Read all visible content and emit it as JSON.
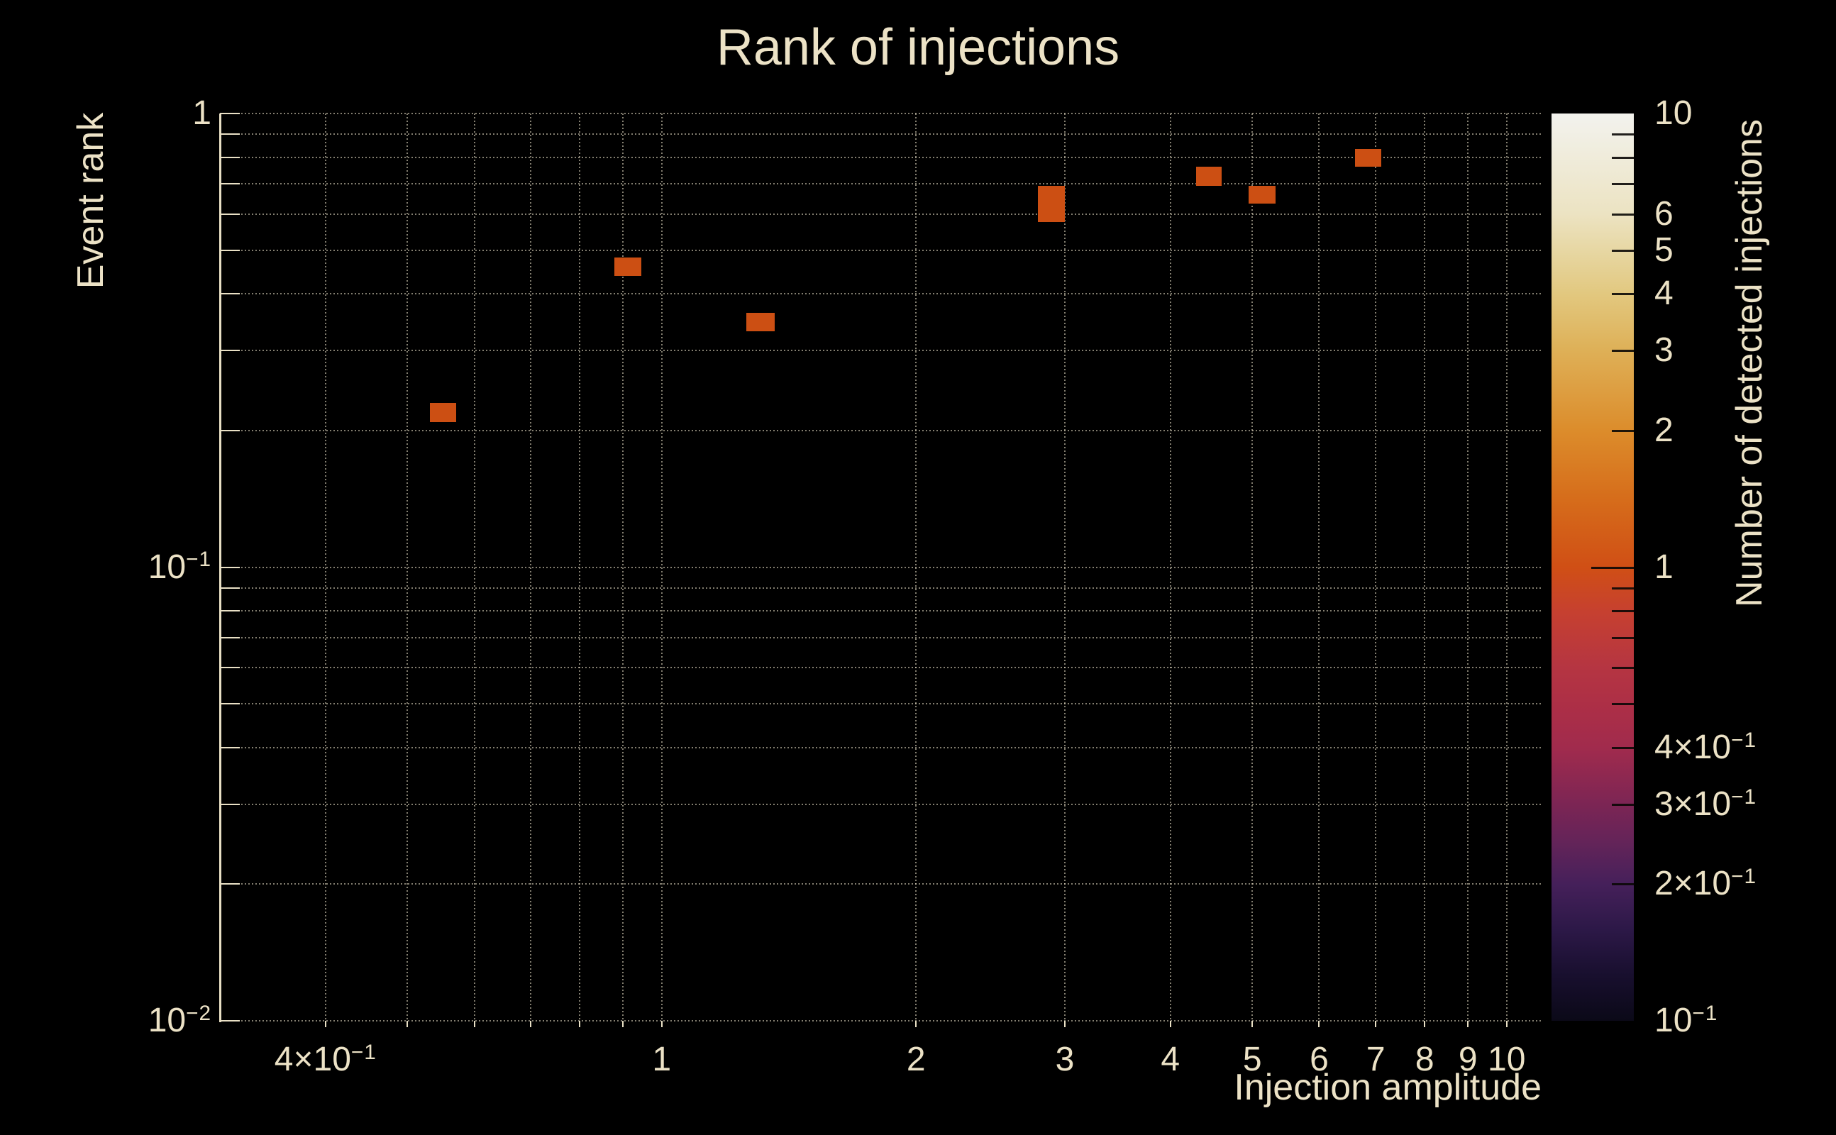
{
  "title": "Rank of injections",
  "colors": {
    "background": "#000000",
    "text": "#ece2c6",
    "grid": "#eee5cb",
    "cell_fill": "#cc4f13"
  },
  "chart_data": {
    "type": "heatmap",
    "title": "Rank of injections",
    "xlabel": "Injection amplitude",
    "ylabel": "Event rank",
    "zlabel": "Number of detected injections",
    "x_scale": "log",
    "y_scale": "log",
    "z_scale": "log",
    "xlim": [
      0.3,
      11
    ],
    "ylim": [
      0.01,
      1
    ],
    "zlim": [
      0.1,
      10
    ],
    "grid": true,
    "x_gridlines": [
      0.4,
      0.5,
      0.6,
      0.7,
      0.8,
      0.9,
      1,
      2,
      3,
      4,
      5,
      6,
      7,
      8,
      9,
      10
    ],
    "y_gridlines": [
      1,
      0.9,
      0.8,
      0.7,
      0.6,
      0.5,
      0.4,
      0.3,
      0.2,
      0.1,
      0.09,
      0.08,
      0.07,
      0.06,
      0.05,
      0.04,
      0.03,
      0.02,
      0.01
    ],
    "x_tick_labels": [
      {
        "v": 0.4,
        "base": "4×10",
        "exp": "−1"
      },
      {
        "v": 1,
        "base": "1"
      },
      {
        "v": 2,
        "base": "2"
      },
      {
        "v": 3,
        "base": "3"
      },
      {
        "v": 4,
        "base": "4"
      },
      {
        "v": 5,
        "base": "5"
      },
      {
        "v": 6,
        "base": "6"
      },
      {
        "v": 7,
        "base": "7"
      },
      {
        "v": 8,
        "base": "8"
      },
      {
        "v": 9,
        "base": "9"
      },
      {
        "v": 10,
        "base": "10"
      }
    ],
    "y_tick_labels": [
      {
        "v": 1,
        "base": "1"
      },
      {
        "v": 0.1,
        "base": "10",
        "exp": "−1"
      },
      {
        "v": 0.01,
        "base": "10",
        "exp": "−2"
      }
    ],
    "cells": [
      {
        "x0": 0.532,
        "x1": 0.571,
        "y0": 0.209,
        "y1": 0.23,
        "count": 1
      },
      {
        "x0": 0.879,
        "x1": 0.946,
        "y0": 0.438,
        "y1": 0.481,
        "count": 1
      },
      {
        "x0": 1.26,
        "x1": 1.36,
        "y0": 0.331,
        "y1": 0.364,
        "count": 1
      },
      {
        "x0": 2.79,
        "x1": 3.0,
        "y0": 0.576,
        "y1": 0.634,
        "count": 1
      },
      {
        "x0": 2.79,
        "x1": 3.0,
        "y0": 0.634,
        "y1": 0.693,
        "count": 1
      },
      {
        "x0": 4.29,
        "x1": 4.6,
        "y0": 0.693,
        "y1": 0.763,
        "count": 1
      },
      {
        "x0": 4.95,
        "x1": 5.33,
        "y0": 0.633,
        "y1": 0.693,
        "count": 1
      },
      {
        "x0": 6.62,
        "x1": 7.1,
        "y0": 0.763,
        "y1": 0.835,
        "count": 1
      }
    ],
    "colorbar": {
      "tick_values": [
        9,
        8,
        7,
        6,
        5,
        4,
        3,
        2,
        1,
        0.9,
        0.8,
        0.7,
        0.6,
        0.5,
        0.4,
        0.3,
        0.2
      ],
      "major_tick_values": [
        1
      ],
      "labels": [
        {
          "v": 10,
          "base": "10"
        },
        {
          "v": 6,
          "base": "6"
        },
        {
          "v": 5,
          "base": "5"
        },
        {
          "v": 4,
          "base": "4"
        },
        {
          "v": 3,
          "base": "3"
        },
        {
          "v": 2,
          "base": "2"
        },
        {
          "v": 1,
          "base": "1"
        },
        {
          "v": 0.4,
          "base": "4×10",
          "exp": "−1"
        },
        {
          "v": 0.3,
          "base": "3×10",
          "exp": "−1"
        },
        {
          "v": 0.2,
          "base": "2×10",
          "exp": "−1"
        },
        {
          "v": 0.1,
          "base": "10",
          "exp": "−1"
        }
      ],
      "gradient_stops": [
        [
          0,
          "#f3f2ee"
        ],
        [
          4,
          "#f0edde"
        ],
        [
          11.1,
          "#ece3c2"
        ],
        [
          15.1,
          "#e7d7a3"
        ],
        [
          19.9,
          "#e2c87f"
        ],
        [
          26.1,
          "#deb057"
        ],
        [
          35.0,
          "#dc8c2b"
        ],
        [
          42.4,
          "#d66d1b"
        ],
        [
          50,
          "#d04f15"
        ],
        [
          55,
          "#c64030"
        ],
        [
          61.1,
          "#b53542"
        ],
        [
          65.1,
          "#ad2f46"
        ],
        [
          69.9,
          "#a12b4d"
        ],
        [
          76.1,
          "#7c2554"
        ],
        [
          80.3,
          "#642459"
        ],
        [
          85.0,
          "#45205a"
        ],
        [
          90,
          "#2c1847"
        ],
        [
          95,
          "#180f2e"
        ],
        [
          100,
          "#0b0918"
        ]
      ]
    }
  }
}
